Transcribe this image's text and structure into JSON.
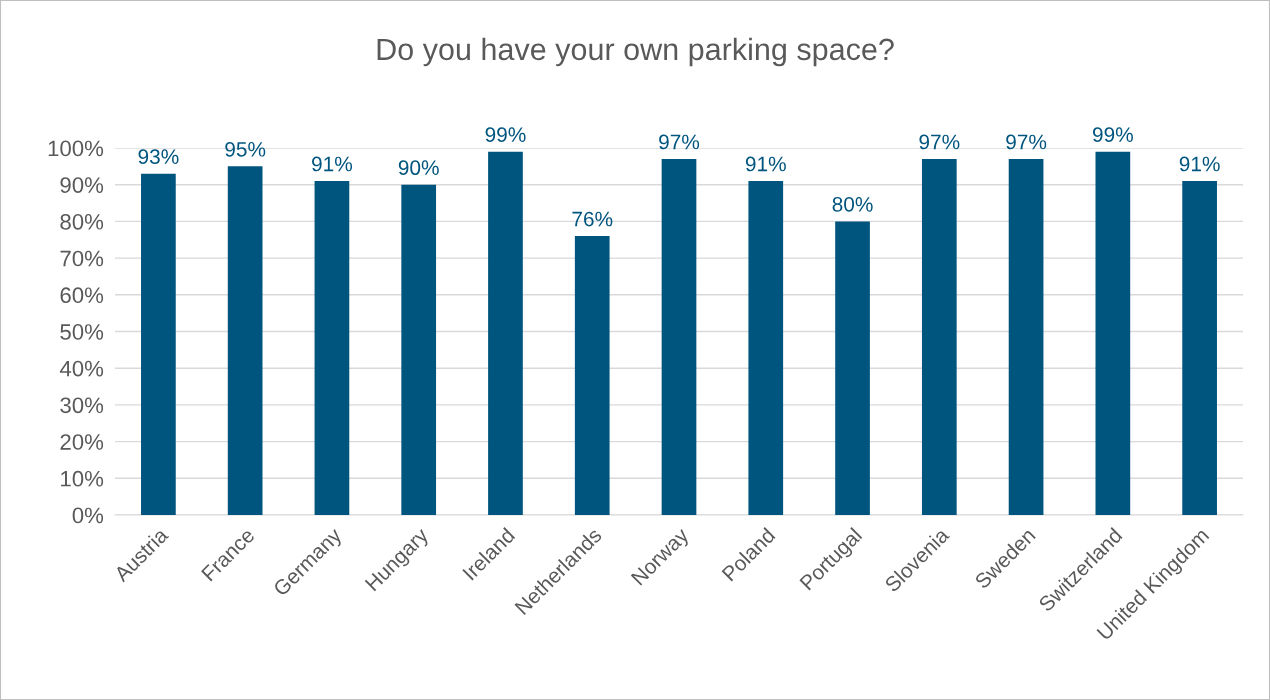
{
  "chart_data": {
    "type": "bar",
    "title": "Do you have your own parking space?",
    "categories": [
      "Austria",
      "France",
      "Germany",
      "Hungary",
      "Ireland",
      "Netherlands",
      "Norway",
      "Poland",
      "Portugal",
      "Slovenia",
      "Sweden",
      "Switzerland",
      "United Kingdom"
    ],
    "values": [
      93,
      95,
      91,
      90,
      99,
      76,
      97,
      91,
      80,
      97,
      97,
      99,
      91
    ],
    "value_labels": [
      "93%",
      "95%",
      "91%",
      "90%",
      "99%",
      "76%",
      "97%",
      "91%",
      "80%",
      "97%",
      "97%",
      "99%",
      "91%"
    ],
    "color": "#00557f",
    "ylim": [
      0,
      100
    ],
    "yticks": [
      {
        "value": 0,
        "label": "0%"
      },
      {
        "value": 10,
        "label": "10%"
      },
      {
        "value": 20,
        "label": "20%"
      },
      {
        "value": 30,
        "label": "30%"
      },
      {
        "value": 40,
        "label": "40%"
      },
      {
        "value": 50,
        "label": "50%"
      },
      {
        "value": 60,
        "label": "60%"
      },
      {
        "value": 70,
        "label": "70%"
      },
      {
        "value": 80,
        "label": "80%"
      },
      {
        "value": 90,
        "label": "90%"
      },
      {
        "value": 100,
        "label": "100%"
      }
    ],
    "grid": "y",
    "legend": false
  }
}
